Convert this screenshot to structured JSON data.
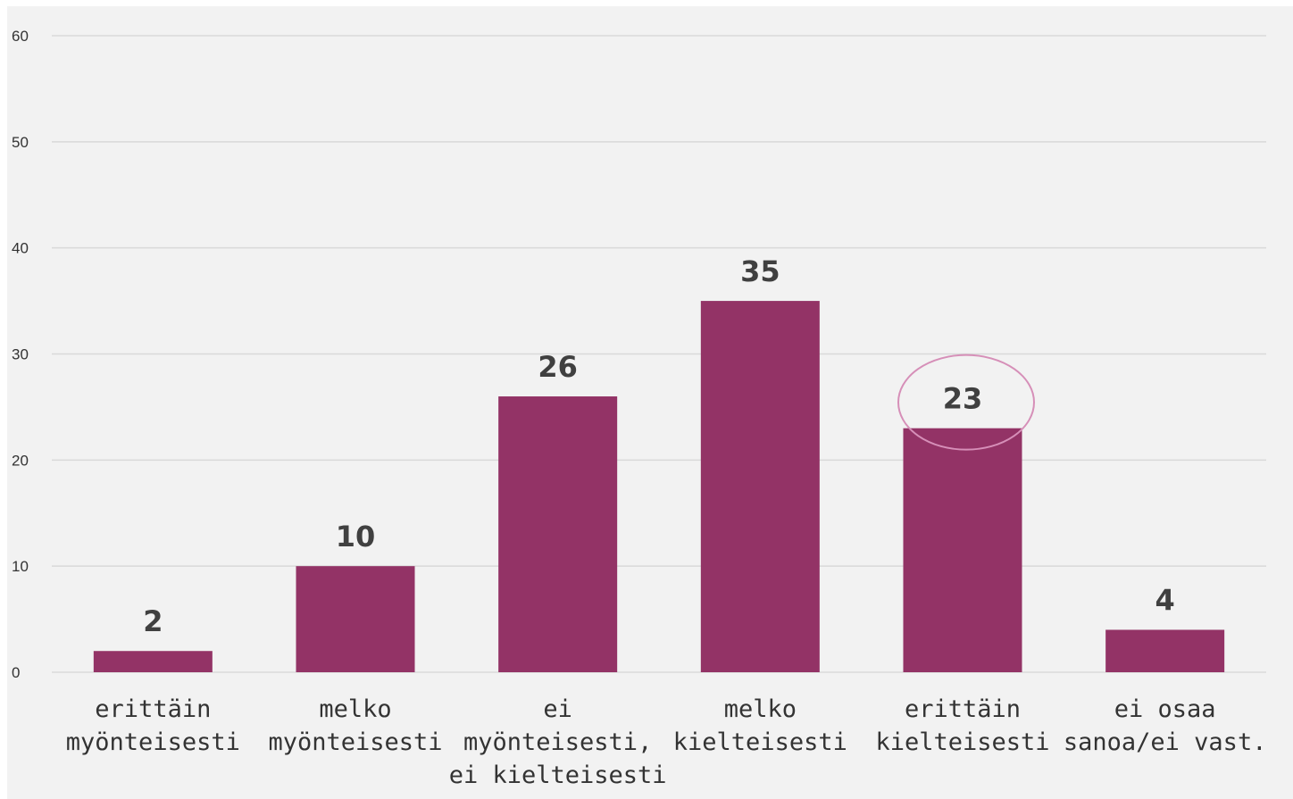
{
  "chart_data": {
    "type": "bar",
    "categories": [
      [
        "erittäin",
        "myönteisesti"
      ],
      [
        "melko",
        "myönteisesti"
      ],
      [
        "ei",
        "myönteisesti,",
        "ei kielteisesti"
      ],
      [
        "melko",
        "kielteisesti"
      ],
      [
        "erittäin",
        "kielteisesti"
      ],
      [
        "ei osaa",
        "sanoa/ei vast."
      ]
    ],
    "values": [
      2,
      10,
      26,
      35,
      23,
      4
    ],
    "ylim": [
      0,
      60
    ],
    "yticks": [
      0,
      10,
      20,
      30,
      40,
      50,
      60
    ],
    "grid": true,
    "highlight_index": 4,
    "colors": {
      "bar": "#933366",
      "highlight_ring": "#d68fb8",
      "grid": "#d9d9d9",
      "background": "#f2f2f2"
    }
  }
}
